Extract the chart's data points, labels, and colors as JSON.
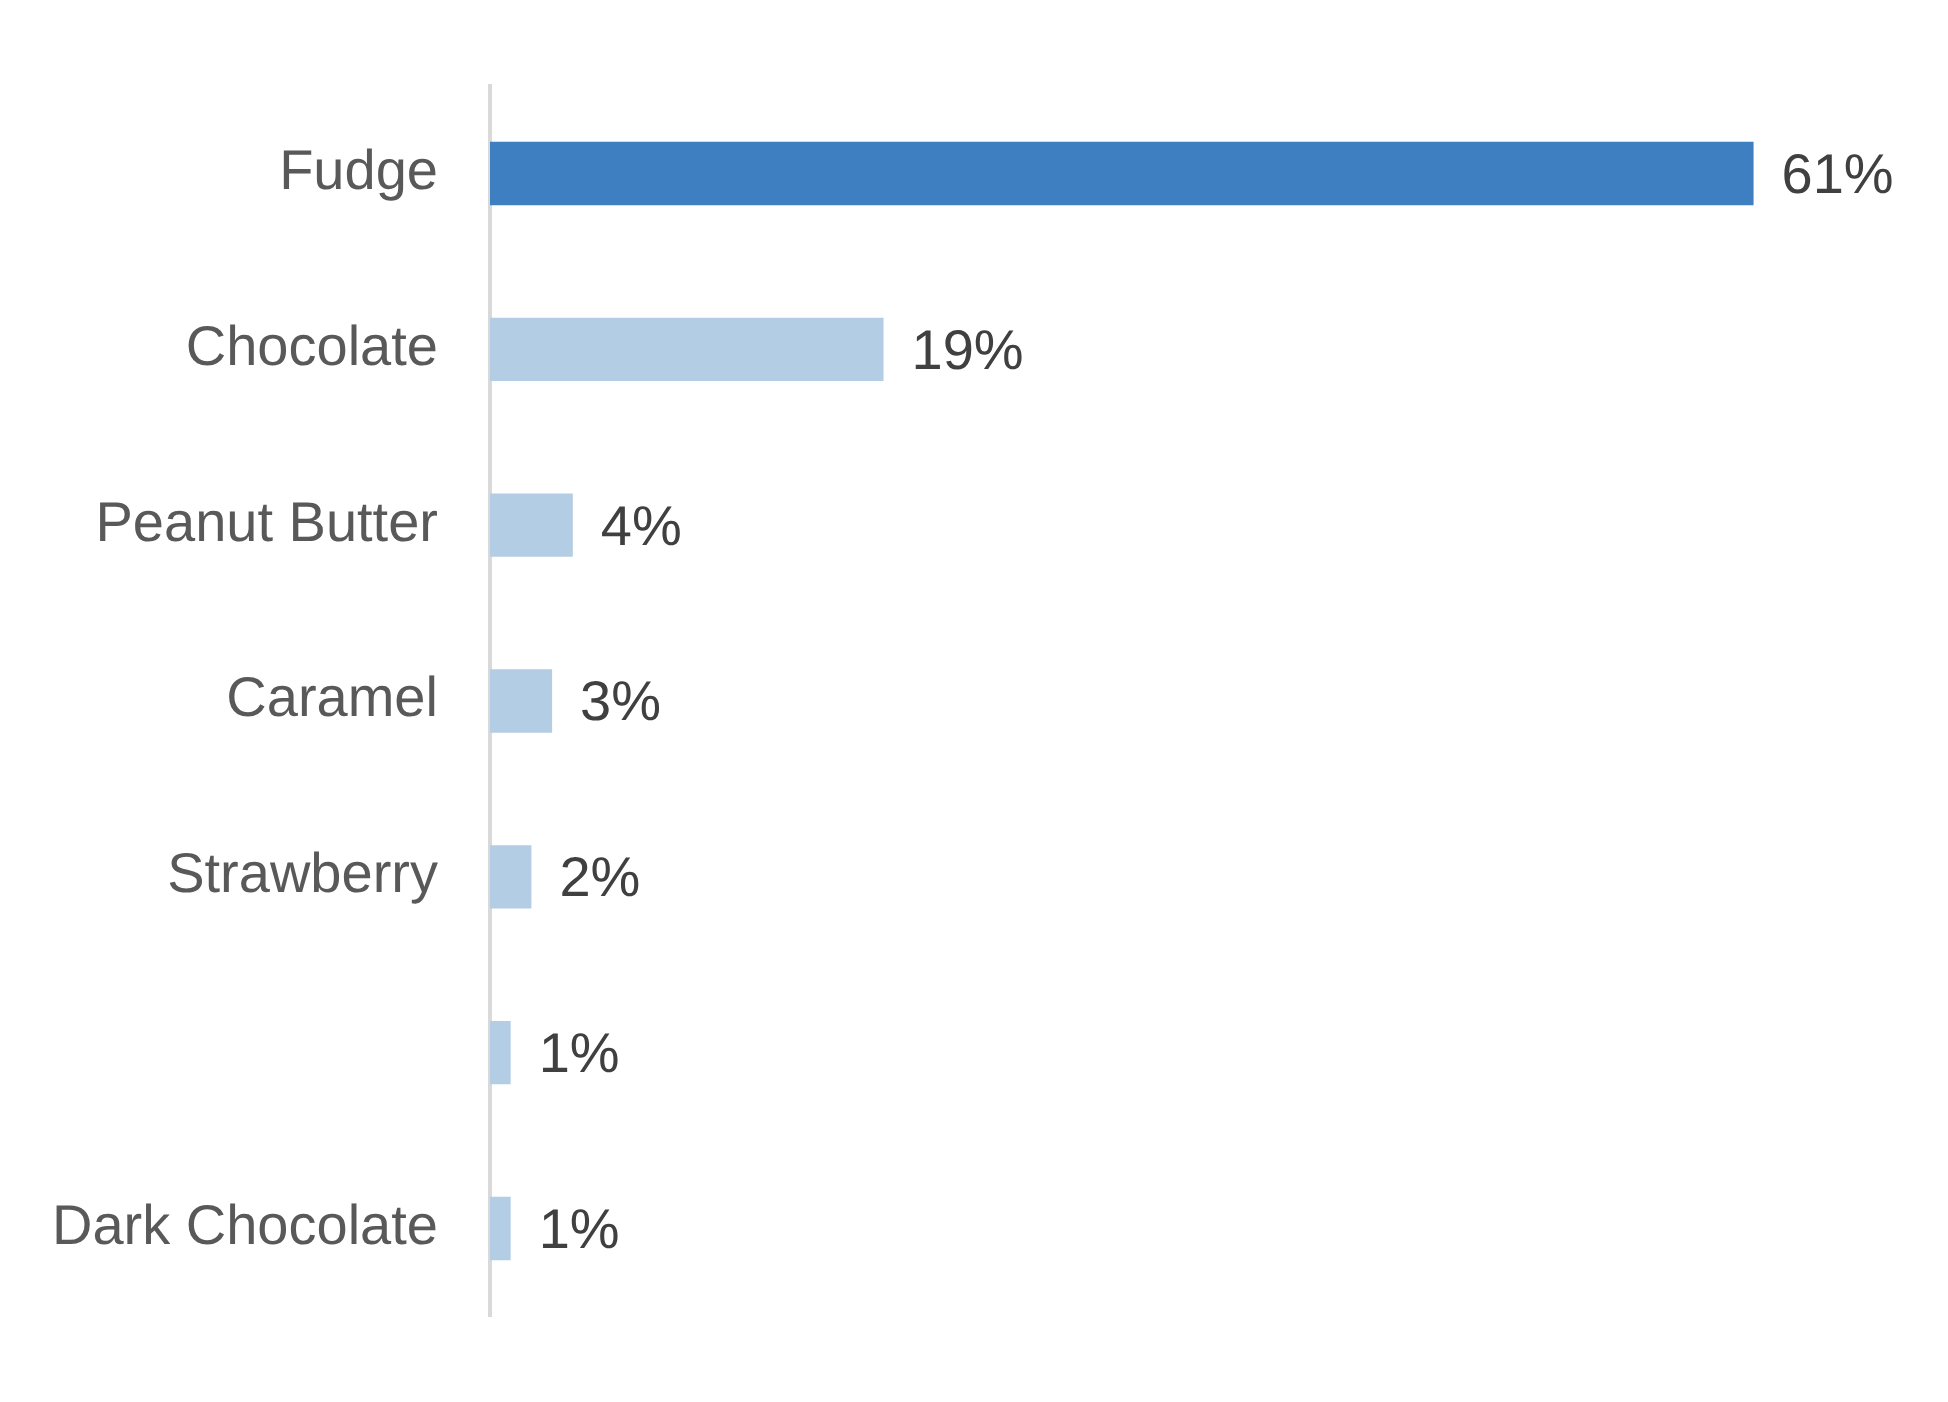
{
  "chart_data": {
    "type": "bar",
    "orientation": "horizontal",
    "categories": [
      "Fudge",
      "Chocolate",
      "Peanut Butter",
      "Caramel",
      "Strawberry",
      null,
      "Dark Chocolate"
    ],
    "values": [
      61,
      19,
      4,
      3,
      2,
      1,
      1
    ],
    "colors": [
      "#3e7fc1",
      "#b3cde4",
      "#b3cde4",
      "#b3cde4",
      "#b3cde4",
      "#b3cde4",
      "#b3cde4"
    ],
    "value_labels": [
      "61%",
      "19%",
      "4%",
      "3%",
      "2%",
      "1%",
      "1%"
    ],
    "grid": false,
    "legend": false
  }
}
